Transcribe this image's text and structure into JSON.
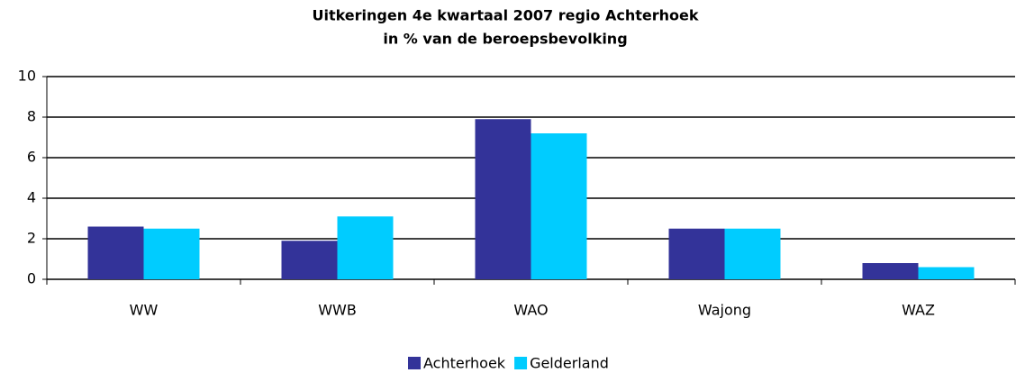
{
  "chart_data": {
    "type": "bar",
    "title": "Uitkeringen 4e kwartaal 2007 regio Achterhoek",
    "subtitle": "in % van de beroepsbevolking",
    "categories": [
      "WW",
      "WWB",
      "WAO",
      "Wajong",
      "WAZ"
    ],
    "series": [
      {
        "name": "Achterhoek",
        "color": "#333399",
        "values": [
          2.6,
          1.9,
          7.9,
          2.5,
          0.8
        ]
      },
      {
        "name": "Gelderland",
        "color": "#00ccff",
        "values": [
          2.5,
          3.1,
          7.2,
          2.5,
          0.6
        ]
      }
    ],
    "ylim": [
      0,
      10
    ],
    "yticks": [
      0,
      2,
      4,
      6,
      8,
      10
    ],
    "grid": true,
    "legend": "bottom"
  }
}
